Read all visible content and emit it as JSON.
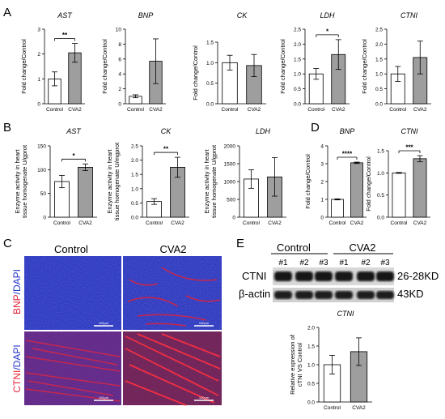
{
  "panel_letters": [
    "A",
    "B",
    "C",
    "D",
    "E"
  ],
  "colors": {
    "control_fill": "#ffffff",
    "cva2_fill": "#9e9e9e",
    "axis": "#000000",
    "bnp_stain": "#e0223a",
    "ctni_stain": "#e8263a",
    "dapi": "#2436c8"
  },
  "chart_data": [
    {
      "id": "A-AST",
      "type": "bar",
      "title": "AST",
      "ylabel": "Fold change/Control",
      "categories": [
        "Control",
        "CVA2"
      ],
      "values": [
        1.0,
        2.05
      ],
      "errors": [
        0.28,
        0.38
      ],
      "ylim": [
        0,
        3
      ],
      "yticks": [
        0,
        1,
        2,
        3
      ],
      "sig": "**"
    },
    {
      "id": "A-BNP",
      "type": "bar",
      "title": "BNP",
      "ylabel": "Fold change/Control",
      "categories": [
        "Control",
        "CVA2"
      ],
      "values": [
        1.0,
        5.7
      ],
      "errors": [
        0.2,
        3.0
      ],
      "ylim": [
        0,
        10
      ],
      "yticks": [
        0,
        2,
        4,
        6,
        8,
        10
      ],
      "sig": ""
    },
    {
      "id": "A-CK",
      "type": "bar",
      "title": "CK",
      "ylabel": "Fold change/Control",
      "categories": [
        "Control",
        "CVA2"
      ],
      "values": [
        1.0,
        0.93
      ],
      "errors": [
        0.18,
        0.27
      ],
      "ylim": [
        0,
        1.5
      ],
      "yticks": [
        0.0,
        0.5,
        1.0,
        1.5
      ],
      "sig": ""
    },
    {
      "id": "A-LDH",
      "type": "bar",
      "title": "LDH",
      "ylabel": "Fold change/Control",
      "categories": [
        "Control",
        "CVA2"
      ],
      "values": [
        1.0,
        1.65
      ],
      "errors": [
        0.18,
        0.5
      ],
      "ylim": [
        0,
        2.5
      ],
      "yticks": [
        0.0,
        0.5,
        1.0,
        1.5,
        2.0,
        2.5
      ],
      "sig": "*"
    },
    {
      "id": "A-CTNI",
      "type": "bar",
      "title": "CTNI",
      "ylabel": "Fold change/Control",
      "categories": [
        "Control",
        "CVA2"
      ],
      "values": [
        1.0,
        1.55
      ],
      "errors": [
        0.25,
        0.55
      ],
      "ylim": [
        0,
        2.5
      ],
      "yticks": [
        0.0,
        0.5,
        1.0,
        1.5,
        2.0,
        2.5
      ],
      "sig": ""
    },
    {
      "id": "B-AST",
      "type": "bar",
      "title": "AST",
      "ylabel": "Enzyme activity in heart tissue homogenate U/gprot",
      "categories": [
        "Control",
        "CVA2"
      ],
      "values": [
        75,
        105
      ],
      "errors": [
        13,
        7
      ],
      "ylim": [
        0,
        150
      ],
      "yticks": [
        0,
        50,
        100,
        150
      ],
      "sig": "*"
    },
    {
      "id": "B-CK",
      "type": "bar",
      "title": "CK",
      "ylabel": "Enzyme activity in heart tissue homogenate U/mgprot",
      "categories": [
        "Control",
        "CVA2"
      ],
      "values": [
        0.55,
        1.75
      ],
      "errors": [
        0.1,
        0.35
      ],
      "ylim": [
        0,
        2.5
      ],
      "yticks": [
        0.0,
        0.5,
        1.0,
        1.5,
        2.0,
        2.5
      ],
      "sig": "**"
    },
    {
      "id": "B-LDH",
      "type": "bar",
      "title": "LDH",
      "ylabel": "Enzyme activity in heart tissue homogenate U/gprot",
      "categories": [
        "Control",
        "CVA2"
      ],
      "values": [
        1070,
        1130
      ],
      "errors": [
        260,
        540
      ],
      "ylim": [
        0,
        2000
      ],
      "yticks": [
        0,
        500,
        1000,
        1500,
        2000
      ],
      "sig": ""
    },
    {
      "id": "D-BNP",
      "type": "bar",
      "title": "BNP",
      "ylabel": "Fold change/Control",
      "categories": [
        "Control",
        "CVA2"
      ],
      "values": [
        1.0,
        3.05
      ],
      "errors": [
        0.03,
        0.04
      ],
      "ylim": [
        0,
        4
      ],
      "yticks": [
        0,
        1,
        2,
        3,
        4
      ],
      "sig": "****"
    },
    {
      "id": "D-CTNI",
      "type": "bar",
      "title": "CTNI",
      "ylabel": "Fold change/Control",
      "categories": [
        "Control",
        "CVA2"
      ],
      "values": [
        1.0,
        1.32
      ],
      "errors": [
        0.01,
        0.07
      ],
      "ylim": [
        0,
        1.5
      ],
      "yticks": [
        0.0,
        0.5,
        1.0,
        1.5
      ],
      "sig": "***"
    },
    {
      "id": "E-CTNI",
      "type": "bar",
      "title": "CTNI",
      "ylabel": "Relative expression of cTNI VS Control",
      "categories": [
        "Control",
        "CVA2"
      ],
      "values": [
        1.0,
        1.35
      ],
      "errors": [
        0.25,
        0.37
      ],
      "ylim": [
        0,
        2.0
      ],
      "yticks": [
        0.0,
        0.5,
        1.0,
        1.5,
        2.0
      ],
      "sig": ""
    }
  ],
  "panel_c": {
    "col_headers": [
      "Control",
      "CVA2"
    ],
    "row_labels": [
      {
        "marker": "BNP",
        "stain": "DAPI"
      },
      {
        "marker": "CTNI",
        "stain": "DAPI"
      }
    ],
    "scale_bar": "100μm"
  },
  "panel_e_blot": {
    "groups": [
      "Control",
      "CVA2"
    ],
    "lanes": [
      "#1",
      "#2",
      "#3",
      "#1",
      "#2",
      "#3"
    ],
    "rows": [
      {
        "protein": "CTNI",
        "size": "26-28KD"
      },
      {
        "protein": "β-actin",
        "size": "43KD"
      }
    ]
  }
}
